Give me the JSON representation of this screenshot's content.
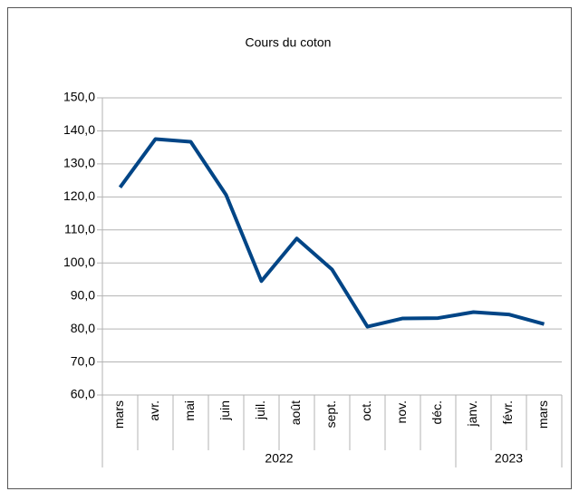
{
  "chart_data": {
    "type": "line",
    "title": "Cours du coton",
    "categories": [
      "mars",
      "avr.",
      "mai",
      "juin",
      "juil.",
      "août",
      "sept.",
      "oct.",
      "nov.",
      "déc.",
      "janv.",
      "févr.",
      "mars"
    ],
    "groups": [
      {
        "label": "2022",
        "count": 10
      },
      {
        "label": "2023",
        "count": 3
      }
    ],
    "series": [
      {
        "name": "Cours du coton",
        "color": "#004586",
        "values": [
          122.9,
          137.5,
          136.7,
          120.6,
          94.5,
          107.4,
          98.0,
          80.7,
          83.2,
          83.3,
          85.1,
          84.4,
          81.5
        ]
      }
    ],
    "ylim": [
      60,
      150
    ],
    "yticks": [
      {
        "value": 60,
        "label": "60,0"
      },
      {
        "value": 70,
        "label": "70,0"
      },
      {
        "value": 80,
        "label": "80,0"
      },
      {
        "value": 90,
        "label": "90,0"
      },
      {
        "value": 100,
        "label": "100,0"
      },
      {
        "value": 110,
        "label": "110,0"
      },
      {
        "value": 120,
        "label": "120,0"
      },
      {
        "value": 130,
        "label": "130,0"
      },
      {
        "value": 140,
        "label": "140,0"
      },
      {
        "value": 150,
        "label": "150,0"
      }
    ],
    "grid": true
  }
}
